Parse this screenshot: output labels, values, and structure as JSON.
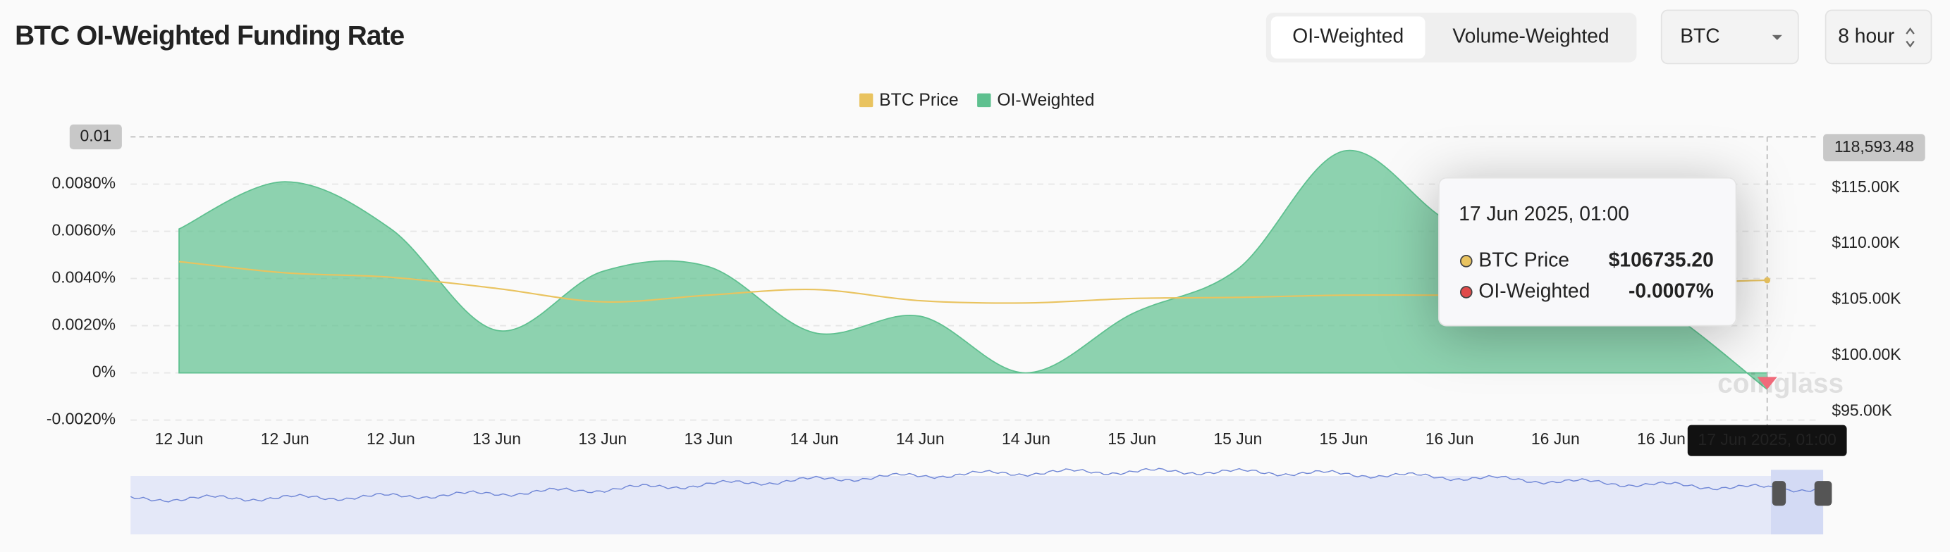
{
  "header": {
    "tabs": [
      "OI-Weighted",
      "Volume-Weighted"
    ],
    "symbol": "BTC",
    "interval": "8 hour"
  },
  "chart_data": {
    "type": "area",
    "title": "BTC OI-Weighted Funding Rate",
    "categories": [
      "12 Jun",
      "12 Jun",
      "12 Jun",
      "13 Jun",
      "13 Jun",
      "13 Jun",
      "14 Jun",
      "14 Jun",
      "14 Jun",
      "15 Jun",
      "15 Jun",
      "15 Jun",
      "16 Jun",
      "16 Jun",
      "16 Jun",
      "17 Jun 2025, 01:00"
    ],
    "series": [
      {
        "name": "BTC Price",
        "type": "line",
        "axis": "y2",
        "color": "#e9c35f",
        "values": [
          108400,
          107400,
          107000,
          106000,
          104800,
          105400,
          105900,
          104900,
          104700,
          105100,
          105200,
          105400,
          105400,
          105500,
          106400,
          106735.2
        ],
        "value_labels": [
          null,
          null,
          null,
          null,
          null,
          null,
          null,
          null,
          null,
          null,
          null,
          null,
          null,
          null,
          null,
          "$106735.20"
        ]
      },
      {
        "name": "OI-Weighted",
        "type": "area",
        "color": "#5ec08f",
        "values": [
          0.0061,
          0.0081,
          0.0061,
          0.0018,
          0.0043,
          0.0045,
          0.0017,
          0.0024,
          0.0,
          0.0025,
          0.0044,
          0.0094,
          0.0064,
          0.005,
          0.0028,
          -0.0007
        ],
        "value_labels": [
          null,
          null,
          null,
          null,
          null,
          null,
          null,
          null,
          null,
          null,
          null,
          null,
          null,
          null,
          null,
          "-0.0007%"
        ]
      }
    ],
    "ylim": [
      -0.002,
      0.01
    ],
    "yticks": [
      {
        "value": -0.002,
        "label": "-0.0020%"
      },
      {
        "value": 0,
        "label": "0%"
      },
      {
        "value": 0.002,
        "label": "0.0020%"
      },
      {
        "value": 0.004,
        "label": "0.0040%"
      },
      {
        "value": 0.006,
        "label": "0.0060%"
      },
      {
        "value": 0.008,
        "label": "0.0080%"
      }
    ],
    "y2lim": [
      94220,
      119560
    ],
    "y2ticks": [
      {
        "value": 95000,
        "label": "$95.00K"
      },
      {
        "value": 100000,
        "label": "$100.00K"
      },
      {
        "value": 105000,
        "label": "$105.00K"
      },
      {
        "value": 110000,
        "label": "$110.00K"
      },
      {
        "value": 115000,
        "label": "$115.00K"
      }
    ],
    "grid": true,
    "legend": "top",
    "crosshair": {
      "y": {
        "value": 0.01,
        "label": "0.01"
      },
      "y2": {
        "value": 118593.48,
        "label": "118,593.48"
      },
      "index": 15
    },
    "watermark": "coinglass"
  }
}
